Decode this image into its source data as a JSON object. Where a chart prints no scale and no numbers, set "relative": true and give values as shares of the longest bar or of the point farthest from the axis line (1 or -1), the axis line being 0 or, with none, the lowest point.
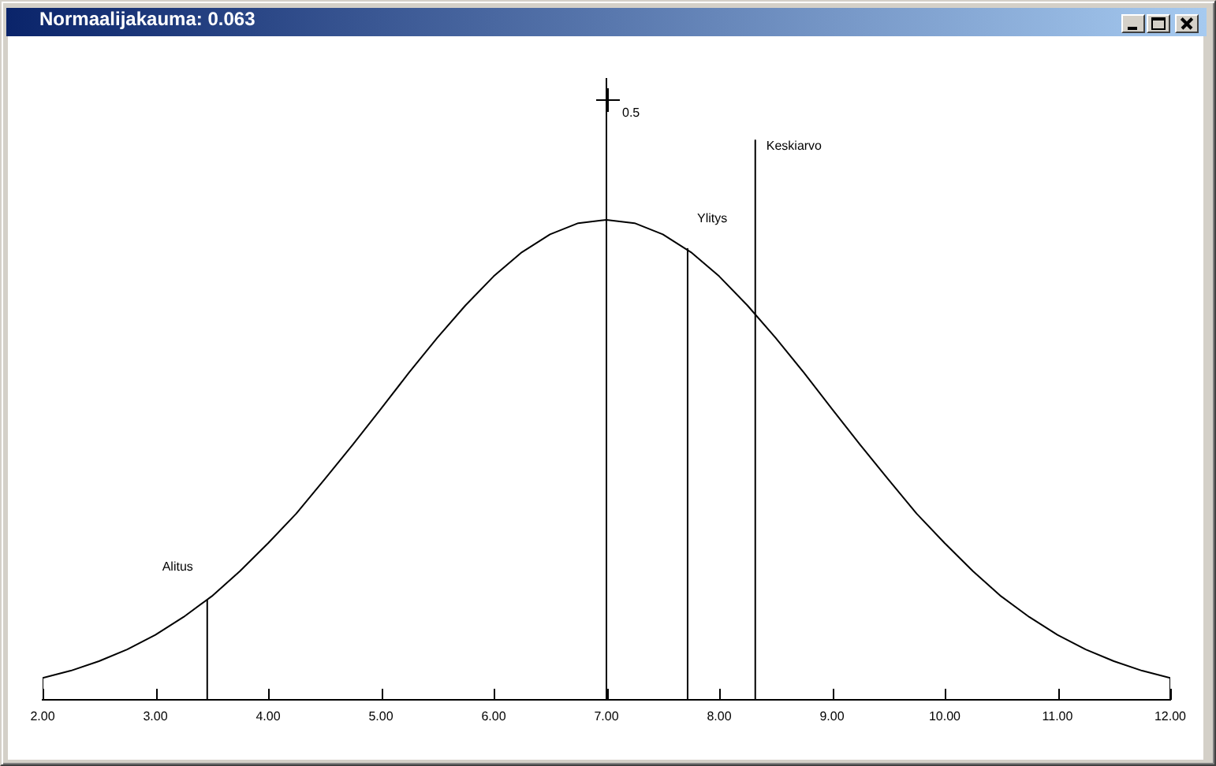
{
  "chart_data": {
    "type": "line",
    "title": "Normaalijakauma: 0.063",
    "relative": true,
    "annotations": [
      "0.5"
    ],
    "xlim": [
      2,
      12
    ],
    "xticks": [
      {
        "value": 2,
        "label": "2.00"
      },
      {
        "value": 3,
        "label": "3.00"
      },
      {
        "value": 4,
        "label": "4.00"
      },
      {
        "value": 5,
        "label": "5.00"
      },
      {
        "value": 6,
        "label": "6.00"
      },
      {
        "value": 7,
        "label": "7.00"
      },
      {
        "value": 8,
        "label": "8.00"
      },
      {
        "value": 9,
        "label": "9.00"
      },
      {
        "value": 10,
        "label": "10.00"
      },
      {
        "value": 11,
        "label": "11.00"
      },
      {
        "value": 12,
        "label": "12.00"
      }
    ],
    "marker": "none",
    "legend": false,
    "series": [
      {
        "color": "#000000",
        "x": [
          2,
          2,
          2.25,
          2.5,
          2.75,
          3,
          3.25,
          3.5,
          3.75,
          4,
          4.25,
          4.5,
          4.75,
          5,
          5.25,
          5.5,
          5.75,
          6,
          6.25,
          6.5,
          6.75,
          7,
          7.25,
          7.5,
          7.75,
          8,
          8.25,
          8.5,
          8.75,
          9,
          9.25,
          9.5,
          9.75,
          10,
          10.25,
          10.5,
          10.75,
          11,
          11.25,
          11.5,
          11.75,
          12,
          12
        ],
        "values": [
          0,
          0.039,
          0.052,
          0.069,
          0.09,
          0.116,
          0.148,
          0.185,
          0.23,
          0.28,
          0.333,
          0.394,
          0.456,
          0.52,
          0.585,
          0.647,
          0.705,
          0.757,
          0.8,
          0.832,
          0.852,
          0.858,
          0.852,
          0.832,
          0.8,
          0.757,
          0.705,
          0.647,
          0.585,
          0.52,
          0.456,
          0.394,
          0.333,
          0.28,
          0.23,
          0.185,
          0.148,
          0.116,
          0.09,
          0.069,
          0.052,
          0.039,
          0
        ]
      },
      {
        "name": "Alitus",
        "color": "#000000",
        "x": [
          3.46,
          3.46
        ],
        "values": [
          0,
          0.178
        ]
      },
      {
        "name": "Ylitys",
        "color": "#000000",
        "x": [
          7.72,
          7.72
        ],
        "values": [
          0,
          0.806
        ]
      },
      {
        "name": "Keskiarvo",
        "color": "#000000",
        "x": [
          8.32,
          8.32
        ],
        "values": [
          0,
          1
        ]
      }
    ]
  }
}
